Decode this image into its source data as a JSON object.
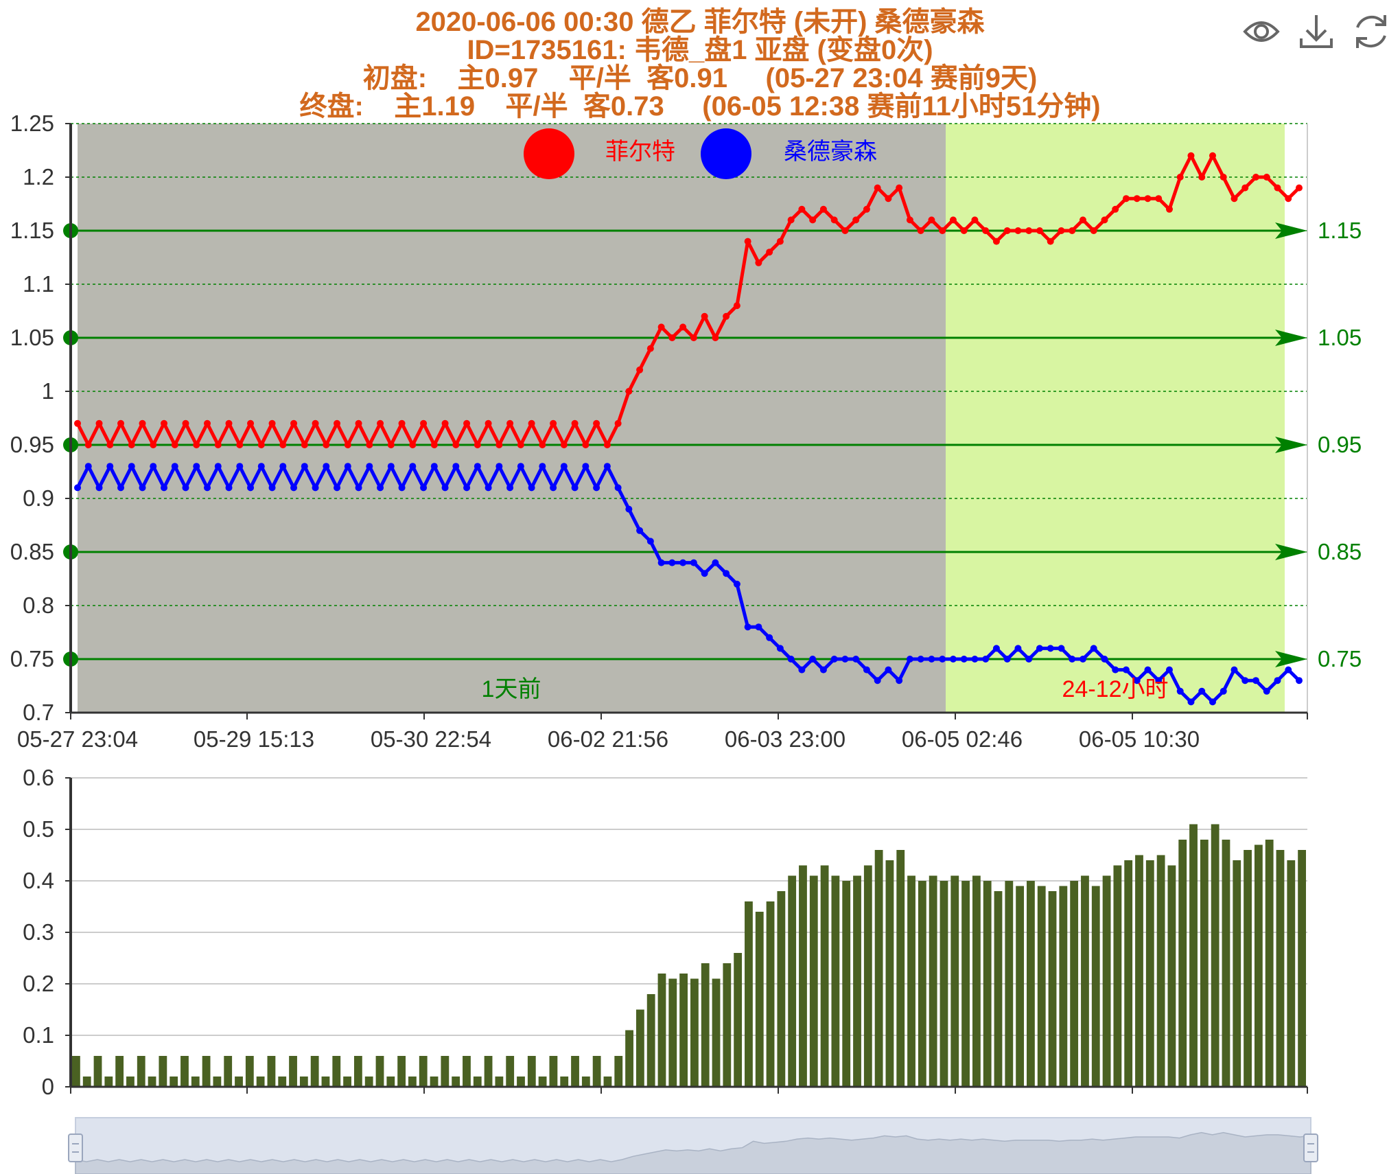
{
  "chart_data": [
    {
      "type": "line",
      "title_lines": [
        "2020-06-06 00:30 德乙 菲尔特 (未开) 桑德豪森",
        "ID=1735161: 韦德_盘1 亚盘 (变盘0次)",
        "初盘:    主0.97    平/半  客0.91     (05-27 23:04 赛前9天)",
        "终盘:    主1.19    平/半  客0.73     (06-05 12:38 赛前11小时51分钟)"
      ],
      "ylim": [
        0.7,
        1.25
      ],
      "y_ticks": [
        "1.25",
        "1.2",
        "1.15",
        "1.1",
        "1.05",
        "1",
        "0.95",
        "0.9",
        "0.85",
        "0.8",
        "0.75",
        "0.7"
      ],
      "ref_lines": [
        "1.15",
        "1.05",
        "0.95",
        "0.85",
        "0.75"
      ],
      "x_tick_labels": [
        "05-27 23:04",
        "05-29 15:13",
        "05-30 22:54",
        "06-02 21:56",
        "06-03 23:00",
        "06-05 02:46",
        "06-05 10:30"
      ],
      "legend_position": "top",
      "series": [
        {
          "name": "菲尔特",
          "color": "#ff0000",
          "values": [
            0.97,
            0.95,
            0.97,
            0.95,
            0.97,
            0.95,
            0.97,
            0.95,
            0.97,
            0.95,
            0.97,
            0.95,
            0.97,
            0.95,
            0.97,
            0.95,
            0.97,
            0.95,
            0.97,
            0.95,
            0.97,
            0.95,
            0.97,
            0.95,
            0.97,
            0.95,
            0.97,
            0.95,
            0.97,
            0.95,
            0.97,
            0.95,
            0.97,
            0.95,
            0.97,
            0.95,
            0.97,
            0.95,
            0.97,
            0.95,
            0.97,
            0.95,
            0.97,
            0.95,
            0.97,
            0.95,
            0.97,
            0.95,
            0.97,
            0.95,
            0.97,
            1.0,
            1.02,
            1.04,
            1.06,
            1.05,
            1.06,
            1.05,
            1.07,
            1.05,
            1.07,
            1.08,
            1.14,
            1.12,
            1.13,
            1.14,
            1.16,
            1.17,
            1.16,
            1.17,
            1.16,
            1.15,
            1.16,
            1.17,
            1.19,
            1.18,
            1.19,
            1.16,
            1.15,
            1.16,
            1.15,
            1.16,
            1.15,
            1.16,
            1.15,
            1.14,
            1.15,
            1.15,
            1.15,
            1.15,
            1.14,
            1.15,
            1.15,
            1.16,
            1.15,
            1.16,
            1.17,
            1.18,
            1.18,
            1.18,
            1.18,
            1.17,
            1.2,
            1.22,
            1.2,
            1.22,
            1.2,
            1.18,
            1.19,
            1.2,
            1.2,
            1.19,
            1.18,
            1.19
          ]
        },
        {
          "name": "桑德豪森",
          "color": "#0000ff",
          "values": [
            0.91,
            0.93,
            0.91,
            0.93,
            0.91,
            0.93,
            0.91,
            0.93,
            0.91,
            0.93,
            0.91,
            0.93,
            0.91,
            0.93,
            0.91,
            0.93,
            0.91,
            0.93,
            0.91,
            0.93,
            0.91,
            0.93,
            0.91,
            0.93,
            0.91,
            0.93,
            0.91,
            0.93,
            0.91,
            0.93,
            0.91,
            0.93,
            0.91,
            0.93,
            0.91,
            0.93,
            0.91,
            0.93,
            0.91,
            0.93,
            0.91,
            0.93,
            0.91,
            0.93,
            0.91,
            0.93,
            0.91,
            0.93,
            0.91,
            0.93,
            0.91,
            0.89,
            0.87,
            0.86,
            0.84,
            0.84,
            0.84,
            0.84,
            0.83,
            0.84,
            0.83,
            0.82,
            0.78,
            0.78,
            0.77,
            0.76,
            0.75,
            0.74,
            0.75,
            0.74,
            0.75,
            0.75,
            0.75,
            0.74,
            0.73,
            0.74,
            0.73,
            0.75,
            0.75,
            0.75,
            0.75,
            0.75,
            0.75,
            0.75,
            0.75,
            0.76,
            0.75,
            0.76,
            0.75,
            0.76,
            0.76,
            0.76,
            0.75,
            0.75,
            0.76,
            0.75,
            0.74,
            0.74,
            0.73,
            0.74,
            0.73,
            0.74,
            0.72,
            0.71,
            0.72,
            0.71,
            0.72,
            0.74,
            0.73,
            0.73,
            0.72,
            0.73,
            0.74,
            0.73
          ]
        }
      ],
      "annotations": [
        {
          "text": "1天前",
          "color": "#008000"
        },
        {
          "text": "24-12小时",
          "color": "#ff0000"
        }
      ],
      "regions": [
        {
          "name": "before",
          "color": "#b8b8b0"
        },
        {
          "name": "24-12h",
          "color": "#d8f5a2"
        }
      ]
    },
    {
      "type": "bar",
      "ylim": [
        0,
        0.6
      ],
      "y_ticks": [
        "0.6",
        "0.5",
        "0.4",
        "0.3",
        "0.2",
        "0.1",
        "0"
      ],
      "color": "#4a6122",
      "values": [
        0.06,
        0.02,
        0.06,
        0.02,
        0.06,
        0.02,
        0.06,
        0.02,
        0.06,
        0.02,
        0.06,
        0.02,
        0.06,
        0.02,
        0.06,
        0.02,
        0.06,
        0.02,
        0.06,
        0.02,
        0.06,
        0.02,
        0.06,
        0.02,
        0.06,
        0.02,
        0.06,
        0.02,
        0.06,
        0.02,
        0.06,
        0.02,
        0.06,
        0.02,
        0.06,
        0.02,
        0.06,
        0.02,
        0.06,
        0.02,
        0.06,
        0.02,
        0.06,
        0.02,
        0.06,
        0.02,
        0.06,
        0.02,
        0.06,
        0.02,
        0.06,
        0.11,
        0.15,
        0.18,
        0.22,
        0.21,
        0.22,
        0.21,
        0.24,
        0.21,
        0.24,
        0.26,
        0.36,
        0.34,
        0.36,
        0.38,
        0.41,
        0.43,
        0.41,
        0.43,
        0.41,
        0.4,
        0.41,
        0.43,
        0.46,
        0.44,
        0.46,
        0.41,
        0.4,
        0.41,
        0.4,
        0.41,
        0.4,
        0.41,
        0.4,
        0.38,
        0.4,
        0.39,
        0.4,
        0.39,
        0.38,
        0.39,
        0.4,
        0.41,
        0.39,
        0.41,
        0.43,
        0.44,
        0.45,
        0.44,
        0.45,
        0.43,
        0.48,
        0.51,
        0.48,
        0.51,
        0.48,
        0.44,
        0.46,
        0.47,
        0.48,
        0.46,
        0.44,
        0.46
      ]
    }
  ],
  "toolbar": {
    "icons": [
      "eye-icon",
      "download-icon",
      "refresh-icon"
    ]
  }
}
